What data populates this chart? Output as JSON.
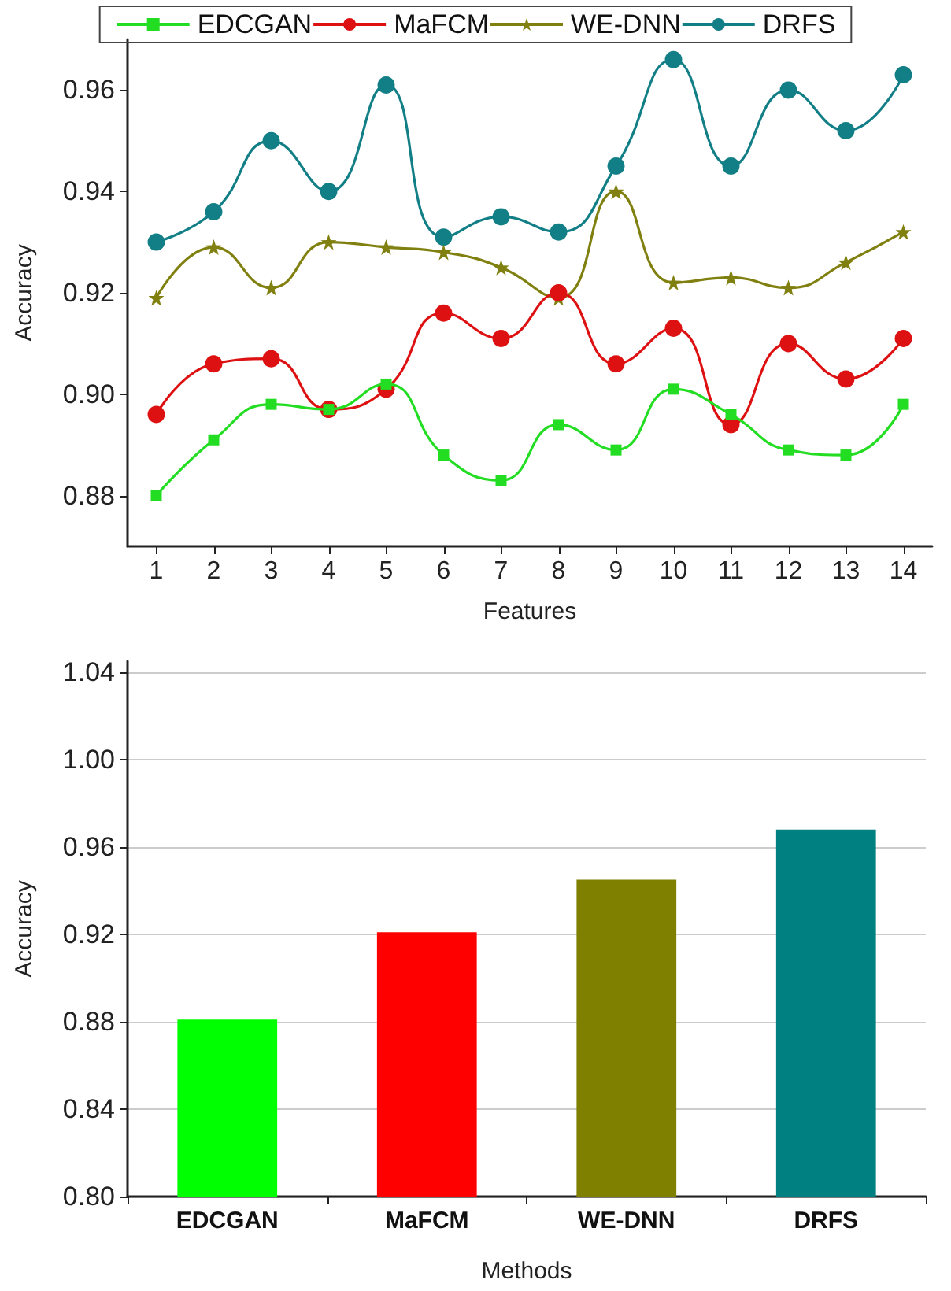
{
  "chart_data": [
    {
      "type": "line",
      "xlabel": "Features",
      "ylabel": "Accuracy",
      "x": [
        1,
        2,
        3,
        4,
        5,
        6,
        7,
        8,
        9,
        10,
        11,
        12,
        13,
        14
      ],
      "xlim": [
        0.5,
        14.5
      ],
      "xticks": [
        1,
        2,
        3,
        4,
        5,
        6,
        7,
        8,
        9,
        10,
        11,
        12,
        13,
        14
      ],
      "ylim": [
        0.87,
        0.97
      ],
      "yticks": [
        0.88,
        {
          "value": 0.9,
          "label": "0.90"
        },
        0.92,
        0.94,
        0.96
      ],
      "series": [
        {
          "name": "EDCGAN",
          "color": "#22dd22",
          "marker": "square",
          "values": [
            0.88,
            0.891,
            0.898,
            0.897,
            0.902,
            0.888,
            0.883,
            0.894,
            0.889,
            0.901,
            0.896,
            0.889,
            0.888,
            0.898
          ]
        },
        {
          "name": "MaFCM",
          "color": "#dd1111",
          "marker": "circle",
          "values": [
            0.896,
            0.906,
            0.907,
            0.897,
            0.901,
            0.916,
            0.911,
            0.92,
            0.906,
            0.913,
            0.894,
            0.91,
            0.903,
            0.911
          ]
        },
        {
          "name": "WE-DNN",
          "color": "#808010",
          "marker": "star",
          "values": [
            0.919,
            0.929,
            0.921,
            0.93,
            0.929,
            0.928,
            0.925,
            0.919,
            0.94,
            0.922,
            0.923,
            0.921,
            0.926,
            0.932
          ]
        },
        {
          "name": "DRFS",
          "color": "#127f86",
          "marker": "circle",
          "values": [
            0.93,
            0.936,
            0.95,
            0.94,
            0.961,
            0.931,
            0.935,
            0.932,
            0.945,
            0.966,
            0.945,
            0.96,
            0.952,
            0.963
          ]
        }
      ],
      "legend": "top",
      "grid": false
    },
    {
      "type": "bar",
      "xlabel": "Methods",
      "ylabel": "Accuracy",
      "categories": [
        "EDCGAN",
        "MaFCM",
        "WE-DNN",
        "DRFS"
      ],
      "values": [
        0.881,
        0.921,
        0.945,
        0.968
      ],
      "colors": [
        "#00ff00",
        "#ff0000",
        "#808000",
        "#008080"
      ],
      "ylim": [
        0.8,
        1.045
      ],
      "yticks": [
        {
          "value": 0.8,
          "label": "0.80"
        },
        0.84,
        0.88,
        0.92,
        0.96,
        {
          "value": 1.0,
          "label": "1.00"
        },
        1.04
      ],
      "grid": "y"
    }
  ]
}
